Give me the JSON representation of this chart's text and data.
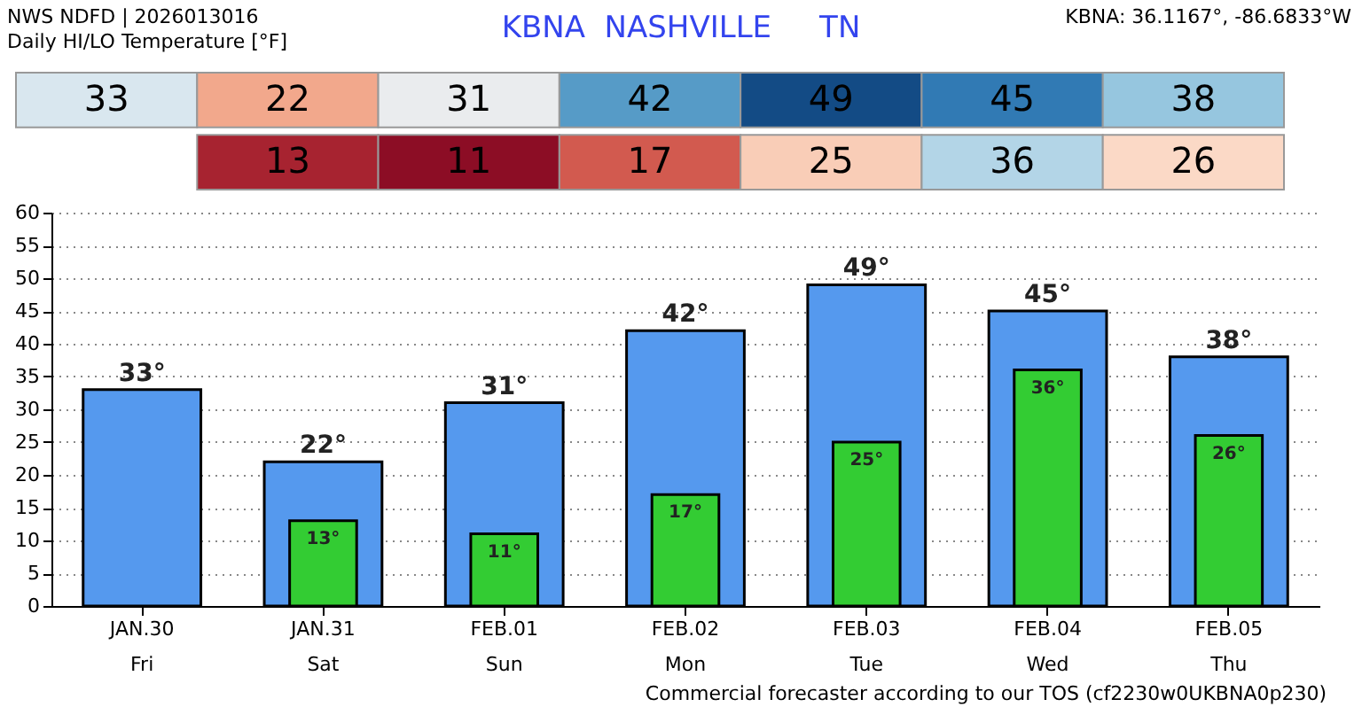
{
  "chart_data": [
    {
      "type": "heatmap",
      "title": "KBNA  NASHVILLE     TN",
      "data_labels": true,
      "annotations": [
        "NWS NDFD | 2026013016",
        "Daily HI/LO Temperature [°F]",
        "KBNA: 36.1167°, -86.6833°W"
      ],
      "categories": [
        null,
        null,
        null,
        null,
        null,
        null,
        null
      ],
      "y_categories": [
        null,
        null
      ],
      "cells": [
        [
          33,
          22,
          31,
          42,
          49,
          45,
          38
        ],
        [
          null,
          13,
          11,
          17,
          25,
          36,
          26
        ]
      ]
    },
    {
      "type": "bar",
      "categories": [
        "JAN.30\nFri",
        "JAN.31\nSat",
        "FEB.01\nSun",
        "FEB.02\nMon",
        "FEB.03\nTue",
        "FEB.04\nWed",
        "FEB.05\nThu"
      ],
      "series": [
        {
          "color": "#5599ee",
          "values": [
            33,
            22,
            31,
            42,
            49,
            45,
            38
          ],
          "value_labels": [
            "33°",
            "22°",
            "31°",
            "42°",
            "49°",
            "45°",
            "38°"
          ]
        },
        {
          "color": "#33cc33",
          "values": [
            null,
            13,
            11,
            17,
            25,
            36,
            26
          ],
          "value_labels": [
            null,
            "13°",
            "11°",
            "17°",
            "25°",
            "36°",
            "26°"
          ]
        }
      ],
      "ylim": [
        0,
        60
      ],
      "yticks": [
        0,
        5,
        10,
        15,
        20,
        25,
        30,
        35,
        40,
        45,
        50,
        55,
        60
      ],
      "grid": "y",
      "annotations": [
        "Commercial forecaster according to our TOS (cf2230w0UKBNA0p230)"
      ]
    }
  ]
}
